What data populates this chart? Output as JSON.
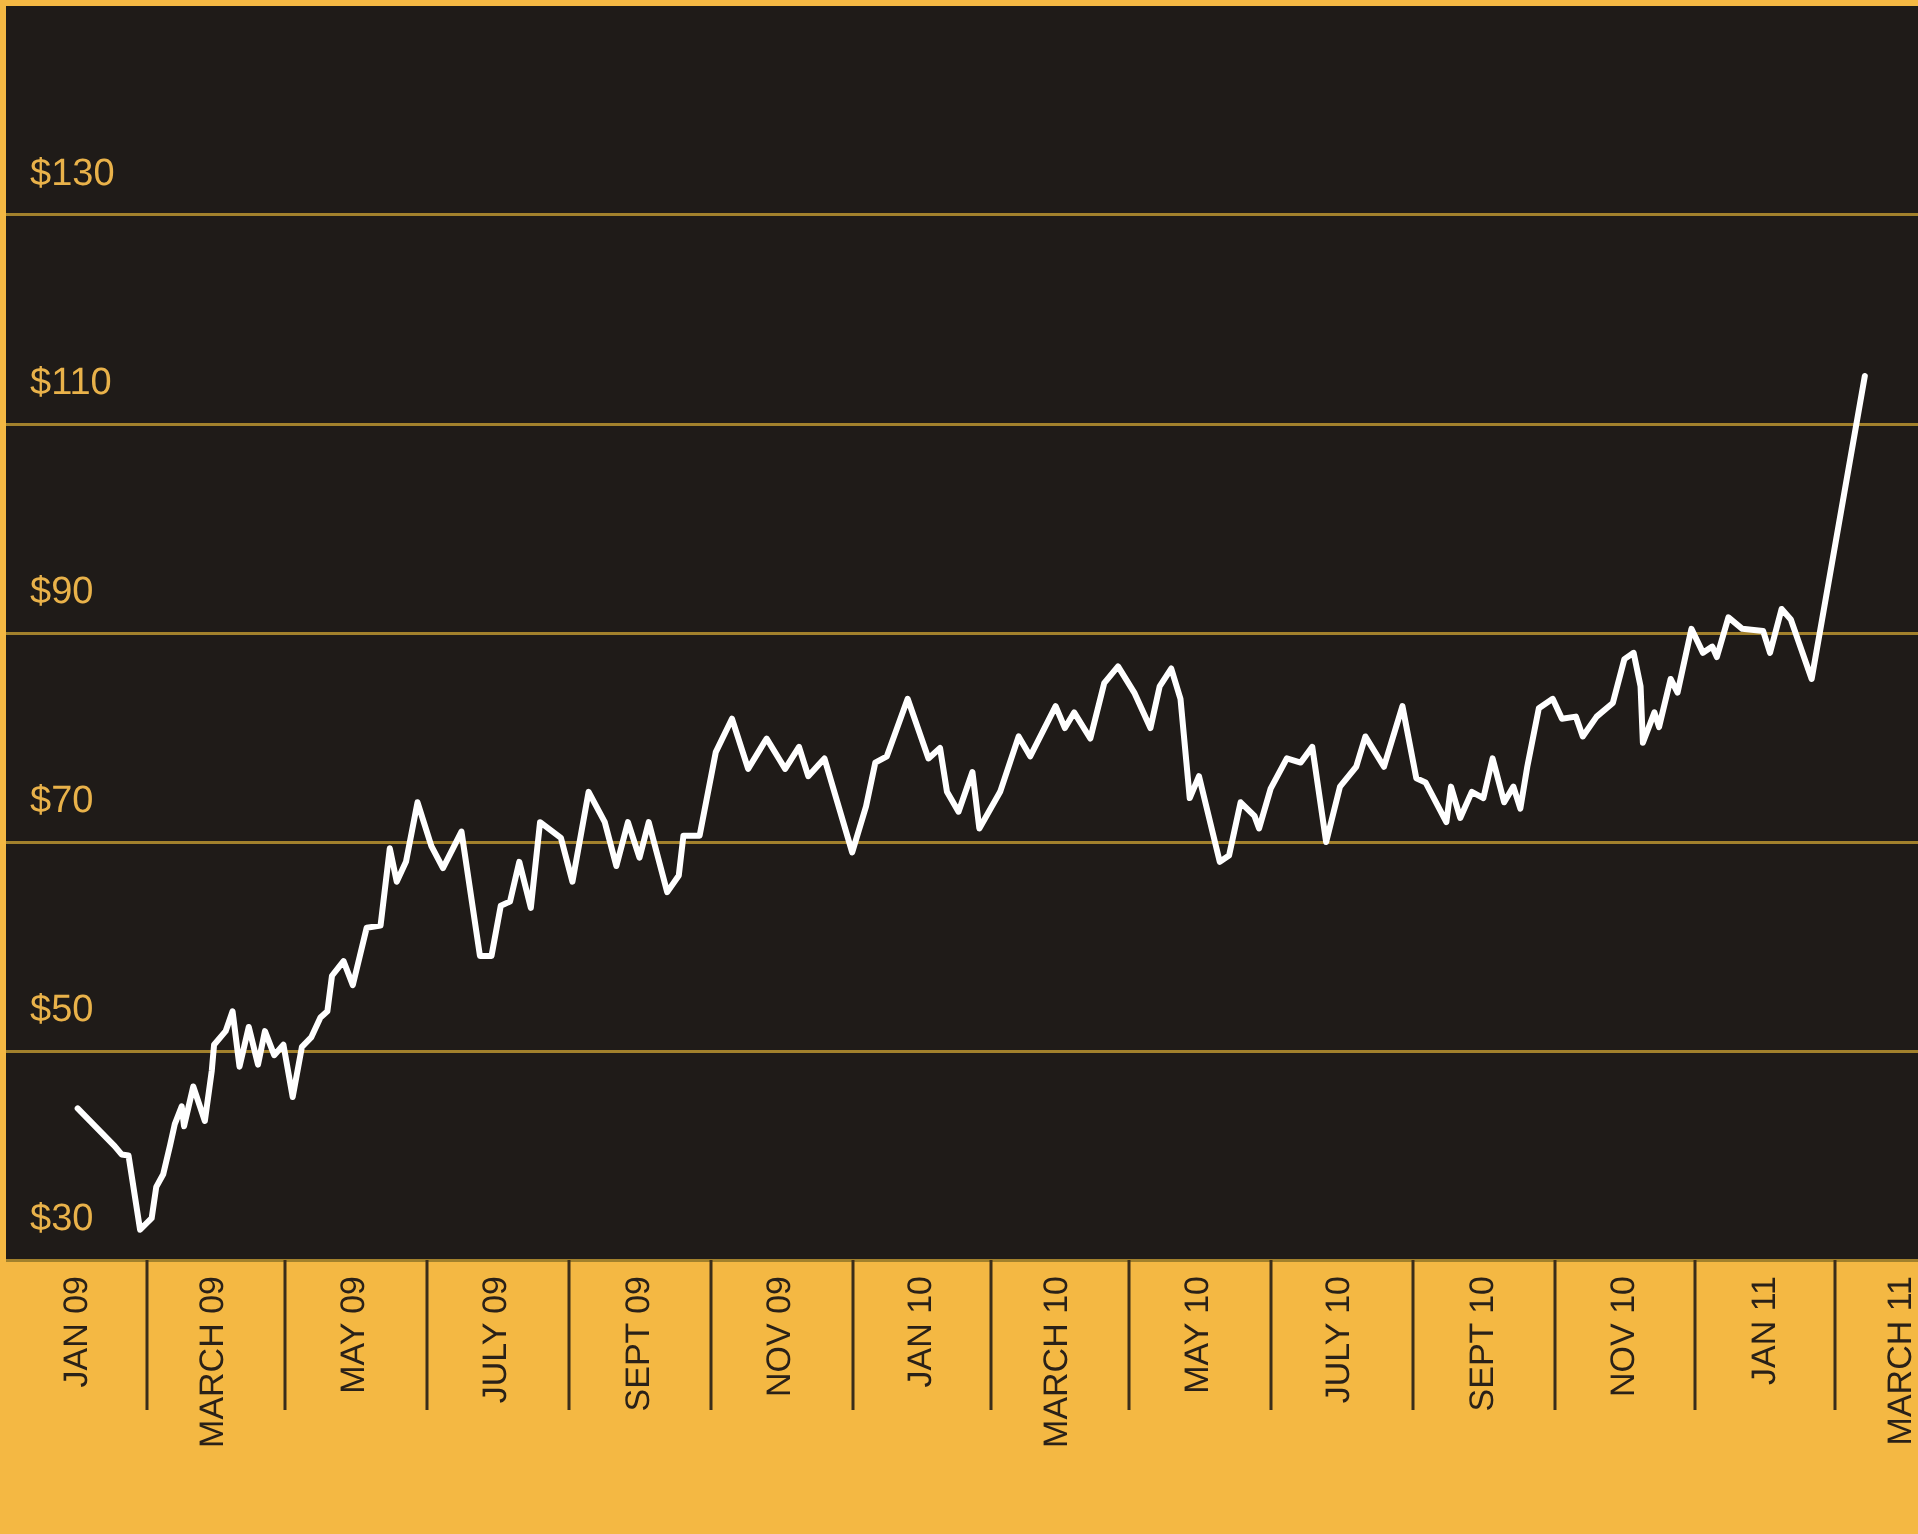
{
  "chart_data": {
    "type": "line",
    "x": [
      "2009-01-01",
      "2009-01-17",
      "2009-01-20",
      "2009-01-23",
      "2009-01-28",
      "2009-02-02",
      "2009-02-04",
      "2009-02-07",
      "2009-02-10",
      "2009-02-12",
      "2009-02-15",
      "2009-02-16",
      "2009-02-20",
      "2009-02-25",
      "2009-02-28",
      "2009-03-01",
      "2009-03-06",
      "2009-03-09",
      "2009-03-12",
      "2009-03-16",
      "2009-03-20",
      "2009-03-23",
      "2009-03-27",
      "2009-03-31",
      "2009-04-04",
      "2009-04-08",
      "2009-04-12",
      "2009-04-16",
      "2009-04-19",
      "2009-04-21",
      "2009-04-26",
      "2009-04-30",
      "2009-05-06",
      "2009-05-12",
      "2009-05-16",
      "2009-05-19",
      "2009-05-23",
      "2009-05-28",
      "2009-06-03",
      "2009-06-08",
      "2009-06-16",
      "2009-06-24",
      "2009-06-29",
      "2009-07-03",
      "2009-07-07",
      "2009-07-11",
      "2009-07-16",
      "2009-07-20",
      "2009-07-29",
      "2009-08-03",
      "2009-08-10",
      "2009-08-17",
      "2009-08-22",
      "2009-08-27",
      "2009-09-01",
      "2009-09-05",
      "2009-09-13",
      "2009-09-18",
      "2009-09-20",
      "2009-09-27",
      "2009-10-04",
      "2009-10-11",
      "2009-10-18",
      "2009-10-26",
      "2009-11-03",
      "2009-11-09",
      "2009-11-13",
      "2009-11-20",
      "2009-12-02",
      "2009-12-08",
      "2009-12-12",
      "2009-12-17",
      "2009-12-26",
      "2010-01-04",
      "2010-01-09",
      "2010-01-12",
      "2010-01-17",
      "2010-01-23",
      "2010-01-26",
      "2010-02-04",
      "2010-02-12",
      "2010-02-17",
      "2010-02-28",
      "2010-03-04",
      "2010-03-08",
      "2010-03-15",
      "2010-03-21",
      "2010-03-27",
      "2010-04-03",
      "2010-04-10",
      "2010-04-14",
      "2010-04-19",
      "2010-04-23",
      "2010-04-27",
      "2010-05-01",
      "2010-05-10",
      "2010-05-14",
      "2010-05-19",
      "2010-05-25",
      "2010-05-27",
      "2010-06-01",
      "2010-06-08",
      "2010-06-14",
      "2010-06-19",
      "2010-06-25",
      "2010-07-01",
      "2010-07-08",
      "2010-07-12",
      "2010-07-20",
      "2010-07-28",
      "2010-08-03",
      "2010-08-07",
      "2010-08-16",
      "2010-08-18",
      "2010-08-22",
      "2010-08-27",
      "2010-09-01",
      "2010-09-05",
      "2010-09-10",
      "2010-09-14",
      "2010-09-17",
      "2010-09-20",
      "2010-09-25",
      "2010-10-01",
      "2010-10-05",
      "2010-10-11",
      "2010-10-14",
      "2010-10-20",
      "2010-10-27",
      "2010-11-01",
      "2010-11-05",
      "2010-11-08",
      "2010-11-09",
      "2010-11-14",
      "2010-11-16",
      "2010-11-21",
      "2010-11-24",
      "2010-11-30",
      "2010-12-05",
      "2010-12-09",
      "2010-12-11",
      "2010-12-16",
      "2010-12-22",
      "2010-12-31",
      "2011-01-03",
      "2011-01-08",
      "2011-01-12",
      "2011-01-21",
      "2011-02-13"
    ],
    "series": [
      {
        "color": "#ffffff",
        "values": [
          44.5,
          40.9,
          40.1,
          40.0,
          32.9,
          34.0,
          37.0,
          38.2,
          41.0,
          43.0,
          44.7,
          42.8,
          46.6,
          43.3,
          48.1,
          50.6,
          51.9,
          53.8,
          48.5,
          52.3,
          48.7,
          51.9,
          49.6,
          50.6,
          45.6,
          50.4,
          51.3,
          53.2,
          53.8,
          57.2,
          58.6,
          56.3,
          61.8,
          62.0,
          69.4,
          66.2,
          68.1,
          73.8,
          69.6,
          67.5,
          71.0,
          59.1,
          59.1,
          63.9,
          64.3,
          68.1,
          63.7,
          71.9,
          70.4,
          66.2,
          74.8,
          71.9,
          67.7,
          71.9,
          68.5,
          71.9,
          65.2,
          66.8,
          70.6,
          70.6,
          78.6,
          81.8,
          77.0,
          79.9,
          77.0,
          79.1,
          76.3,
          78.0,
          69.0,
          73.4,
          77.6,
          78.2,
          83.7,
          78.0,
          79.0,
          74.8,
          72.9,
          76.7,
          71.3,
          74.8,
          80.1,
          78.2,
          83.0,
          80.9,
          82.4,
          79.9,
          85.2,
          86.8,
          84.3,
          80.9,
          84.9,
          86.6,
          83.7,
          74.2,
          76.3,
          68.1,
          68.7,
          73.8,
          72.5,
          71.3,
          75.1,
          78.0,
          77.6,
          79.1,
          70.0,
          75.3,
          77.2,
          80.1,
          77.2,
          83.0,
          76.1,
          75.7,
          71.9,
          75.3,
          72.3,
          74.8,
          74.2,
          78.0,
          73.8,
          75.3,
          73.2,
          77.2,
          82.8,
          83.7,
          81.8,
          82.0,
          80.1,
          82.0,
          83.3,
          87.5,
          88.1,
          84.9,
          79.5,
          82.4,
          81.0,
          85.6,
          84.3,
          90.4,
          88.1,
          88.7,
          87.7,
          91.5,
          90.4,
          90.2,
          88.1,
          92.3,
          91.3,
          85.6,
          114.6
        ]
      }
    ],
    "xlim": [
      "2008-12-01",
      "2011-03-08"
    ],
    "xticks": [
      {
        "value": "2009-01",
        "label": "JAN 09"
      },
      {
        "value": "2009-03",
        "label": "MARCH 09"
      },
      {
        "value": "2009-05",
        "label": "MAY 09"
      },
      {
        "value": "2009-07",
        "label": "JULY 09"
      },
      {
        "value": "2009-09",
        "label": "SEPT 09"
      },
      {
        "value": "2009-11",
        "label": "NOV 09"
      },
      {
        "value": "2010-01",
        "label": "JAN 10"
      },
      {
        "value": "2010-03",
        "label": "MARCH 10"
      },
      {
        "value": "2010-05",
        "label": "MAY 10"
      },
      {
        "value": "2010-07",
        "label": "JULY 10"
      },
      {
        "value": "2010-09",
        "label": "SEPT 10"
      },
      {
        "value": "2010-11",
        "label": "NOV 10"
      },
      {
        "value": "2011-01",
        "label": "JAN 11"
      },
      {
        "value": "2011-03",
        "label": "MARCH 11"
      }
    ],
    "ylim": [
      30,
      150
    ],
    "yticks": [
      {
        "value": 30,
        "label": "$30"
      },
      {
        "value": 50,
        "label": "$50"
      },
      {
        "value": 70,
        "label": "$70"
      },
      {
        "value": 90,
        "label": "$90"
      },
      {
        "value": 110,
        "label": "$110"
      },
      {
        "value": 130,
        "label": "$130"
      }
    ],
    "grid": "y",
    "legend": false,
    "marker": "none",
    "line_style": "solid"
  }
}
